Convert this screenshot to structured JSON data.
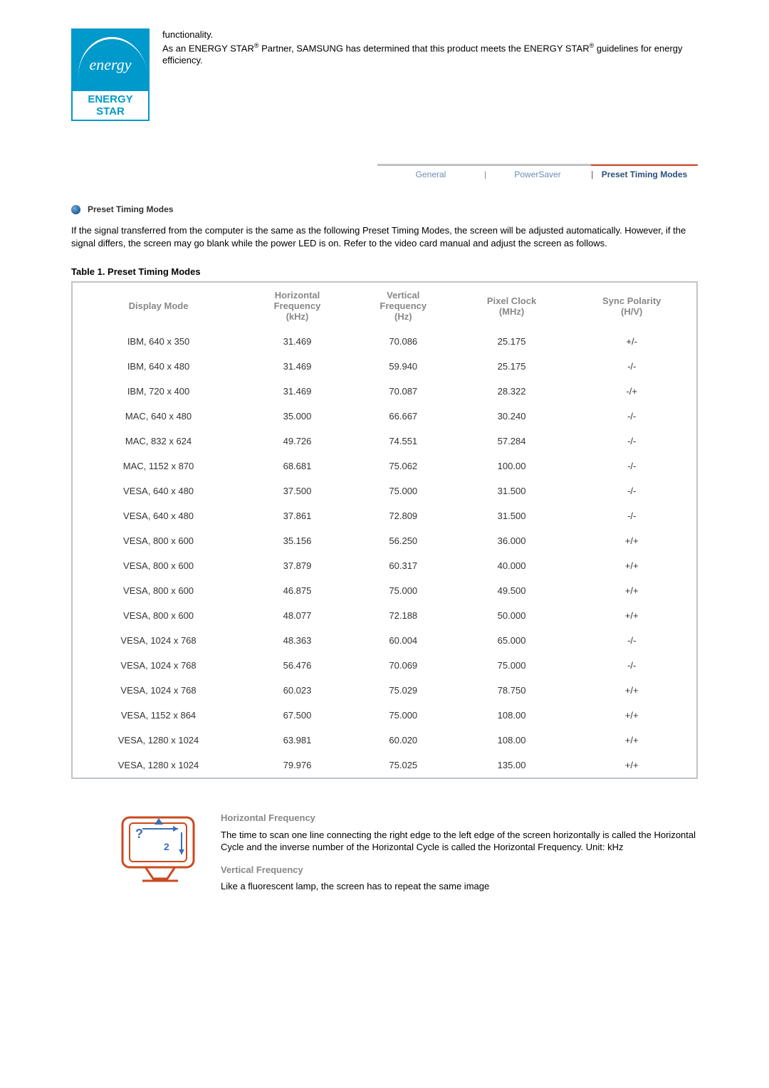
{
  "logo": {
    "script": "energy",
    "bar": "ENERGY STAR"
  },
  "intro": {
    "line1": "functionality.",
    "line2a": "As an ENERGY STAR",
    "line2b": " Partner, SAMSUNG has determined that this product meets the ENERGY STAR",
    "line2c": " guidelines for energy efficiency.",
    "sup": "®"
  },
  "tabs": {
    "general": "General",
    "powersaver": "PowerSaver",
    "preset": "Preset Timing Modes"
  },
  "section": {
    "title": "Preset Timing Modes",
    "body": "If the signal transferred from the computer is the same as the following Preset Timing Modes, the screen will be adjusted automatically. However, if the signal differs, the screen may go blank while the power LED is on. Refer to the video card manual and adjust the screen as follows."
  },
  "table": {
    "caption": "Table 1. Preset Timing Modes",
    "headers": {
      "display": "Display Mode",
      "hfreq": "Horizontal\nFrequency\n(kHz)",
      "vfreq": "Vertical\nFrequency\n(Hz)",
      "pixel": "Pixel Clock\n(MHz)",
      "sync": "Sync Polarity\n(H/V)"
    },
    "rows": [
      {
        "m": "IBM, 640 x 350",
        "h": "31.469",
        "v": "70.086",
        "p": "25.175",
        "s": "+/-"
      },
      {
        "m": "IBM, 640 x 480",
        "h": "31.469",
        "v": "59.940",
        "p": "25.175",
        "s": "-/-"
      },
      {
        "m": "IBM, 720 x 400",
        "h": "31.469",
        "v": "70.087",
        "p": "28.322",
        "s": "-/+"
      },
      {
        "m": "MAC, 640 x 480",
        "h": "35.000",
        "v": "66.667",
        "p": "30.240",
        "s": "-/-"
      },
      {
        "m": "MAC, 832 x 624",
        "h": "49.726",
        "v": "74.551",
        "p": "57.284",
        "s": "-/-"
      },
      {
        "m": "MAC, 1152 x 870",
        "h": "68.681",
        "v": "75.062",
        "p": "100.00",
        "s": "-/-"
      },
      {
        "m": "VESA, 640 x 480",
        "h": "37.500",
        "v": "75.000",
        "p": "31.500",
        "s": "-/-"
      },
      {
        "m": "VESA, 640 x 480",
        "h": "37.861",
        "v": "72.809",
        "p": "31.500",
        "s": "-/-"
      },
      {
        "m": "VESA, 800 x 600",
        "h": "35.156",
        "v": "56.250",
        "p": "36.000",
        "s": "+/+"
      },
      {
        "m": "VESA, 800 x 600",
        "h": "37.879",
        "v": "60.317",
        "p": "40.000",
        "s": "+/+"
      },
      {
        "m": "VESA, 800 x 600",
        "h": "46.875",
        "v": "75.000",
        "p": "49.500",
        "s": "+/+"
      },
      {
        "m": "VESA, 800 x 600",
        "h": "48.077",
        "v": "72.188",
        "p": "50.000",
        "s": "+/+"
      },
      {
        "m": "VESA, 1024 x 768",
        "h": "48.363",
        "v": "60.004",
        "p": "65.000",
        "s": "-/-"
      },
      {
        "m": "VESA, 1024 x 768",
        "h": "56.476",
        "v": "70.069",
        "p": "75.000",
        "s": "-/-"
      },
      {
        "m": "VESA, 1024 x 768",
        "h": "60.023",
        "v": "75.029",
        "p": "78.750",
        "s": "+/+"
      },
      {
        "m": "VESA, 1152 x 864",
        "h": "67.500",
        "v": "75.000",
        "p": "108.00",
        "s": "+/+"
      },
      {
        "m": "VESA, 1280 x 1024",
        "h": "63.981",
        "v": "60.020",
        "p": "108.00",
        "s": "+/+"
      },
      {
        "m": "VESA, 1280 x 1024",
        "h": "79.976",
        "v": "75.025",
        "p": "135.00",
        "s": "+/+"
      }
    ]
  },
  "defs": {
    "hfreq_label": "Horizontal Frequency",
    "hfreq_body": "The time to scan one line connecting the right edge to the left edge of the screen horizontally is called the Horizontal Cycle and the inverse number of the Horizontal Cycle is called the Horizontal Frequency. Unit: kHz",
    "vfreq_label": "Vertical Frequency",
    "vfreq_body": "Like a fluorescent lamp, the screen has to repeat the same image"
  },
  "style": {
    "table_border": "#bfc4ca",
    "header_color": "#888888",
    "tab_active_color": "#d84a2e",
    "tab_link_color": "#6b8bb5"
  }
}
